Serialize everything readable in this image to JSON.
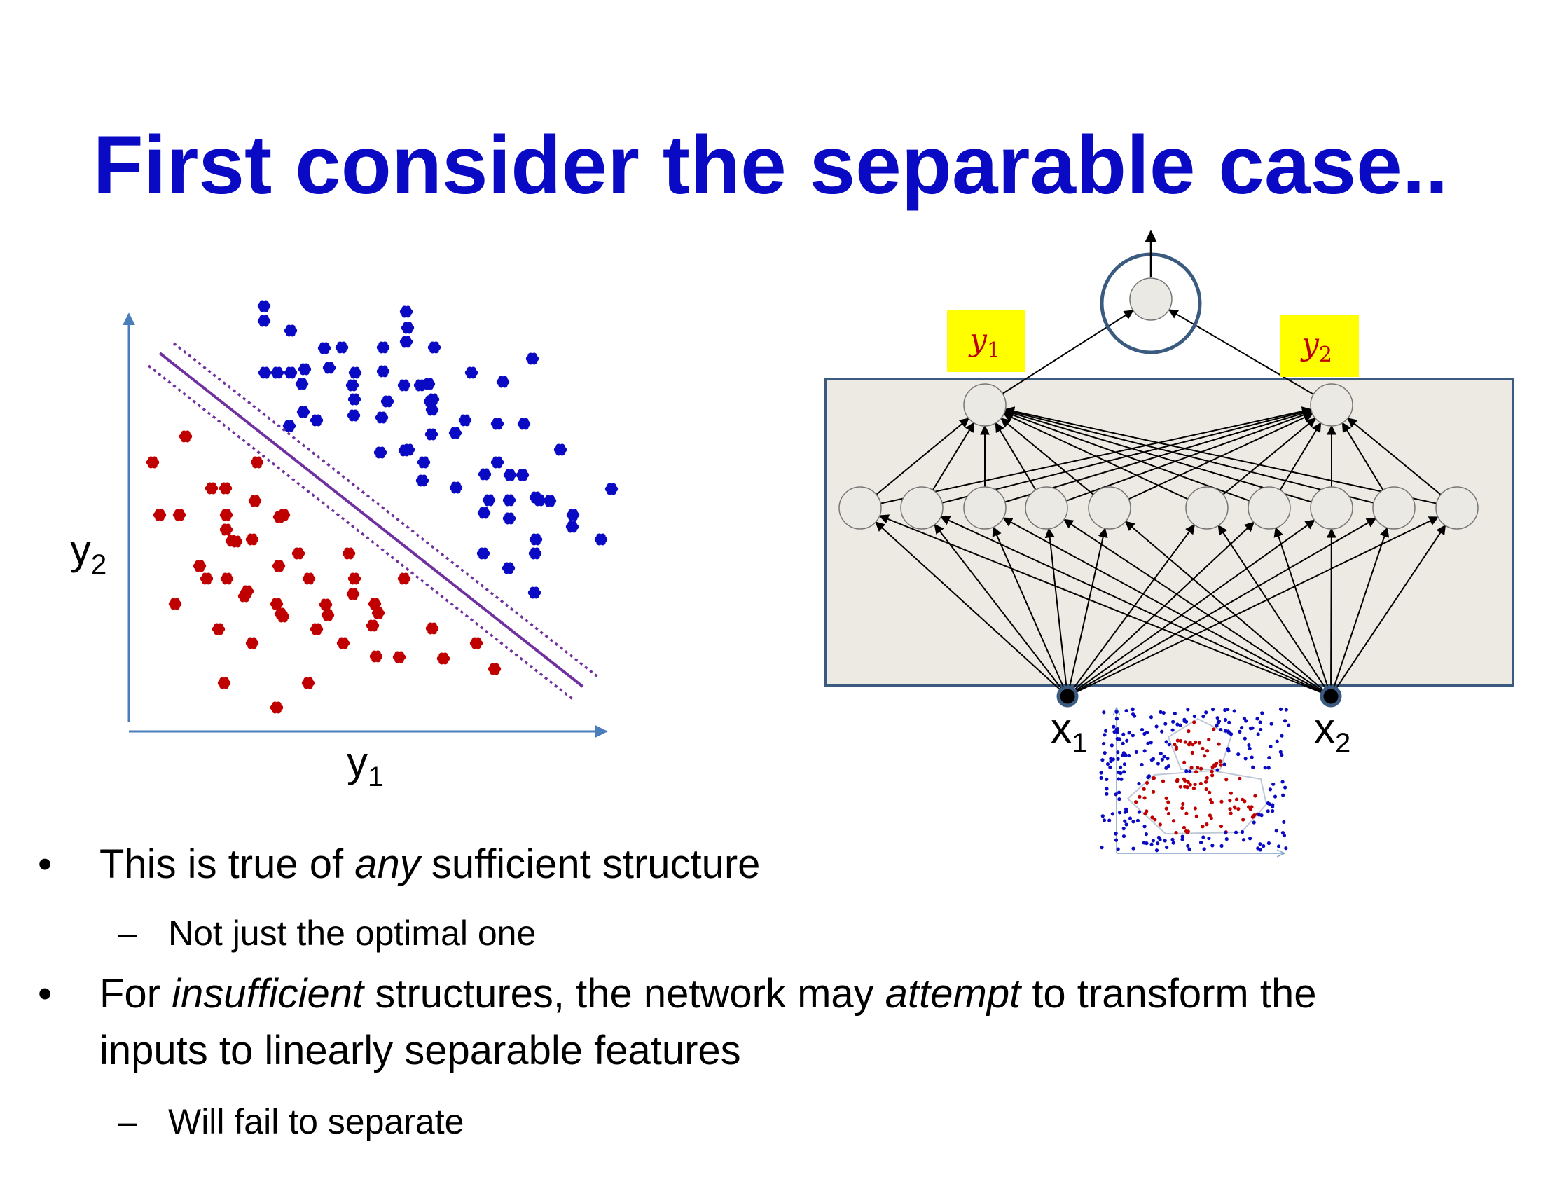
{
  "slide": {
    "title": "First consider the separable case.."
  },
  "scatter": {
    "x_label": "y",
    "x_sub": "1",
    "y_label": "y",
    "y_sub": "2",
    "colors": {
      "class_a": "#0a0ac4",
      "class_b": "#c00000",
      "boundary": "#7030a0",
      "axis": "#4a7ebb"
    }
  },
  "network": {
    "hidden_labels": [
      {
        "text": "y",
        "sub": "1"
      },
      {
        "text": "y",
        "sub": "2"
      }
    ],
    "input_labels": [
      {
        "text": "x",
        "sub": "1"
      },
      {
        "text": "x",
        "sub": "2"
      }
    ],
    "colors": {
      "box_fill": "#edeae3",
      "box_stroke": "#3a5a80",
      "label_bg": "#ffff00",
      "node_fill": "#ebe9e4"
    }
  },
  "bullets": [
    {
      "level": 1,
      "mark": "•",
      "parts": [
        {
          "t": "This is true of "
        },
        {
          "t": "any",
          "i": true
        },
        {
          "t": " sufficient structure"
        }
      ]
    },
    {
      "level": 2,
      "mark": "–",
      "parts": [
        {
          "t": "Not just the optimal one"
        }
      ]
    },
    {
      "level": 1,
      "mark": "•",
      "parts": [
        {
          "t": "For "
        },
        {
          "t": "insufficient",
          "i": true
        },
        {
          "t": " structures, the network may "
        },
        {
          "t": "attempt",
          "i": true
        },
        {
          "t": " to transform the"
        }
      ]
    },
    {
      "level": 1,
      "mark": "",
      "parts": [
        {
          "t": "inputs to linearly separable features"
        }
      ]
    },
    {
      "level": 2,
      "mark": "–",
      "parts": [
        {
          "t": "Will fail to separate"
        }
      ]
    }
  ]
}
